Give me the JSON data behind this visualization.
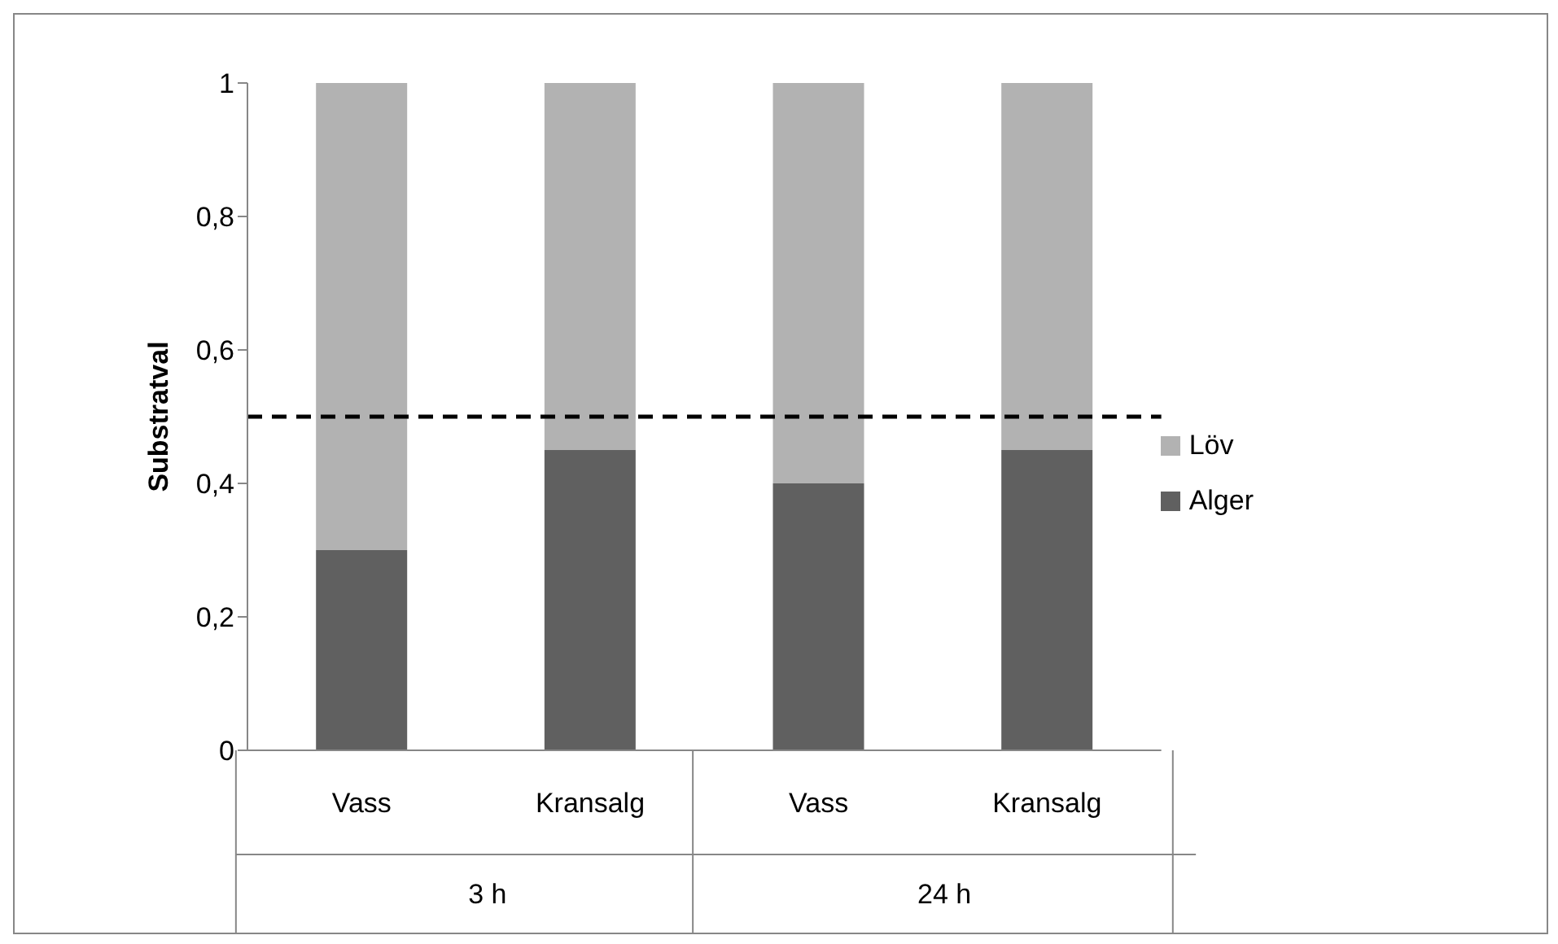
{
  "chart_data": {
    "type": "bar",
    "stacked": true,
    "ylabel": "Substratval",
    "categories": [
      "Vass",
      "Kransalg",
      "Vass",
      "Kransalg"
    ],
    "annotations": [
      "3 h",
      "24 h"
    ],
    "series": [
      {
        "name": "Alger",
        "color": "#606060",
        "values": [
          0.3,
          0.45,
          0.4,
          0.45
        ]
      },
      {
        "name": "Löv",
        "color": "#b2b2b2",
        "values": [
          0.7,
          0.55,
          0.6,
          0.55
        ]
      }
    ],
    "ylim": [
      0,
      1
    ],
    "yticks": [
      0,
      {
        "value": 0.2,
        "label": "0,2"
      },
      {
        "value": 0.4,
        "label": "0,4"
      },
      {
        "value": 0.6,
        "label": "0,6"
      },
      {
        "value": 0.8,
        "label": "0,8"
      },
      1
    ],
    "ref_lines": [
      {
        "axis": "y",
        "value": 0.5,
        "color": "#000000",
        "line_style": "dashed"
      }
    ],
    "grid": false,
    "legend": "right"
  }
}
